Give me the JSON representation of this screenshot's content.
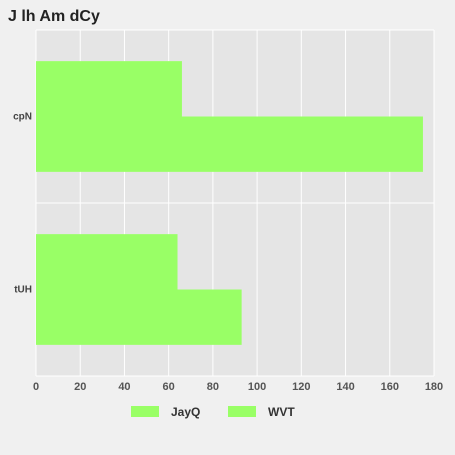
{
  "chart_data": {
    "type": "bar",
    "orientation": "horizontal",
    "title": "J lh Am dCy",
    "xlabel": "",
    "ylabel": "",
    "categories": [
      "tUH",
      "cpN"
    ],
    "series": [
      {
        "name": "JayQ",
        "values": [
          64,
          66
        ],
        "color": "#99ff66"
      },
      {
        "name": "WVT",
        "values": [
          93,
          175
        ],
        "color": "#99ff66"
      }
    ],
    "xlim": [
      0,
      180
    ],
    "xticks": [
      0,
      20,
      40,
      60,
      80,
      100,
      120,
      140,
      160,
      180
    ],
    "grid": true,
    "legend_position": "bottom",
    "colors": {
      "page_background": "#f0f0f0",
      "plot_background": "#e5e5e5",
      "gridline": "#ffffff"
    }
  }
}
